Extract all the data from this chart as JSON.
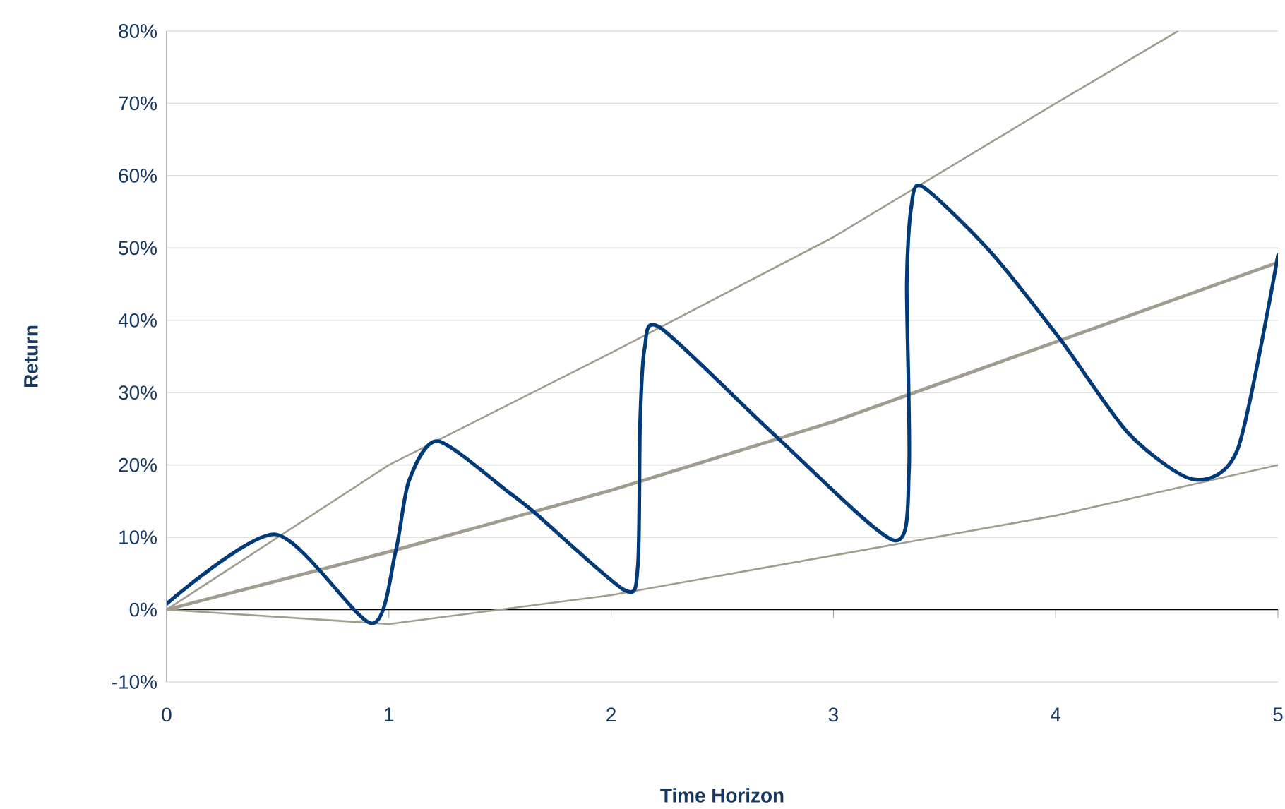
{
  "chart_data": {
    "type": "line",
    "xlabel": "Time Horizon",
    "ylabel": "Return",
    "xlim": [
      0,
      5
    ],
    "ylim": [
      -10,
      80
    ],
    "xticks": [
      0,
      1,
      2,
      3,
      4,
      5
    ],
    "yticks": [
      {
        "value": -10,
        "label": "-10%"
      },
      {
        "value": 0,
        "label": "0%"
      },
      {
        "value": 10,
        "label": "10%"
      },
      {
        "value": 20,
        "label": "20%"
      },
      {
        "value": 30,
        "label": "30%"
      },
      {
        "value": 40,
        "label": "40%"
      },
      {
        "value": 50,
        "label": "50%"
      },
      {
        "value": 60,
        "label": "60%"
      },
      {
        "value": 70,
        "label": "70%"
      },
      {
        "value": 80,
        "label": "80%"
      }
    ],
    "grid": "y",
    "series": [
      {
        "color": "#a09c8e",
        "x": [
          0,
          1,
          2,
          3,
          4,
          4.55
        ],
        "values": [
          0,
          20,
          35.5,
          51.5,
          70,
          80
        ]
      },
      {
        "color": "#a09c8e",
        "x": [
          0,
          1,
          2,
          3,
          4,
          5
        ],
        "values": [
          0,
          8,
          16.5,
          26,
          37,
          48
        ]
      },
      {
        "color": "#a09c8e",
        "x": [
          0,
          1,
          2,
          3,
          4,
          5
        ],
        "values": [
          0,
          -2,
          2,
          7.5,
          13,
          20
        ]
      },
      {
        "color": "#003a78",
        "x": [
          0,
          0.49,
          0.92,
          1.03,
          1.09,
          1.22,
          1.54,
          1.66,
          2.06,
          2.12,
          2.13,
          2.15,
          2.22,
          2.73,
          3.27,
          3.34,
          3.33,
          3.35,
          3.4,
          3.7,
          4.02,
          4.33,
          4.62,
          4.82,
          5
        ],
        "values": [
          0.8,
          10.4,
          -1.9,
          8,
          17.8,
          23.3,
          16.2,
          13.3,
          2.7,
          6,
          25.6,
          36,
          39,
          24.3,
          9.6,
          19.2,
          45,
          55.6,
          58.5,
          49.7,
          37.4,
          24.3,
          18,
          22.3,
          49
        ]
      }
    ]
  }
}
